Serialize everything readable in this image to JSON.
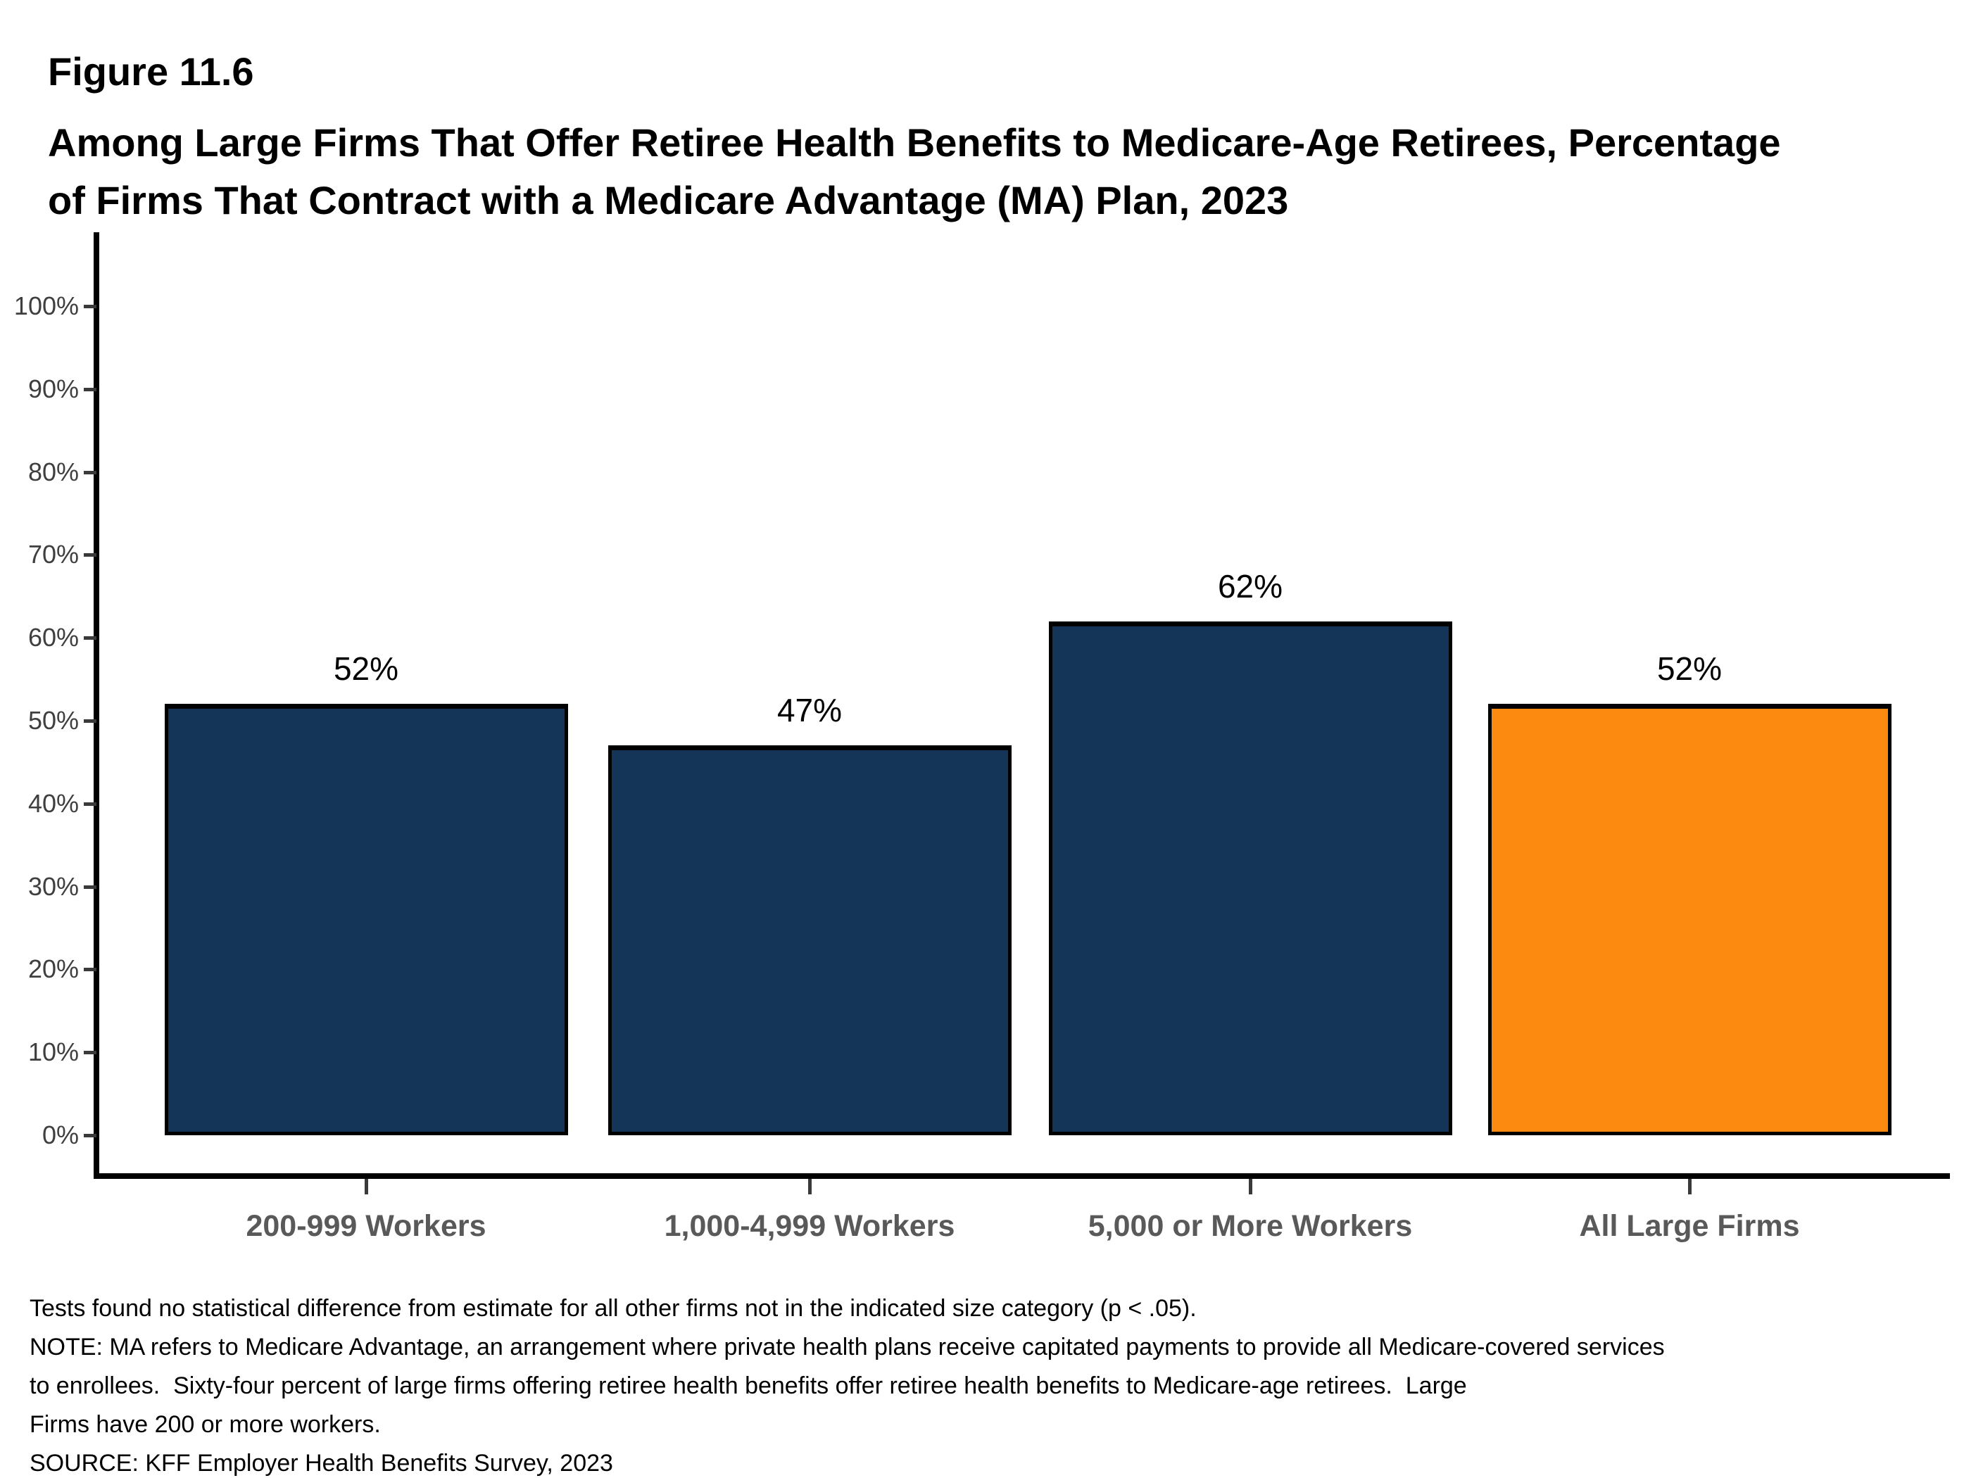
{
  "figure": {
    "number": "Figure 11.6",
    "title_line1": "Among Large Firms That Offer Retiree Health Benefits to Medicare-Age Retirees, Percentage",
    "title_line2": "of Firms That Contract with a Medicare Advantage (MA) Plan, 2023"
  },
  "chart_data": {
    "type": "bar",
    "title": "Among Large Firms That Offer Retiree Health Benefits to Medicare-Age Retirees, Percentage of Firms That Contract with a Medicare Advantage (MA) Plan, 2023",
    "categories": [
      "200-999 Workers",
      "1,000-4,999 Workers",
      "5,000 or More Workers",
      "All Large Firms"
    ],
    "values": [
      52,
      47,
      62,
      52
    ],
    "value_labels": [
      "52%",
      "47%",
      "62%",
      "52%"
    ],
    "bar_colors": [
      "#153558",
      "#153558",
      "#153558",
      "#FC8A10"
    ],
    "xlabel": "",
    "ylabel": "",
    "ylim": [
      0,
      100
    ],
    "ytick_step": 10,
    "ytick_labels": [
      "0%",
      "10%",
      "20%",
      "30%",
      "40%",
      "50%",
      "60%",
      "70%",
      "80%",
      "90%",
      "100%"
    ],
    "grid": false,
    "legend": null
  },
  "colors": {
    "bar_navy": "#153558",
    "bar_orange": "#FC8A10",
    "axis_line": "#000000",
    "ytick_label": "#3f3f3f",
    "xtick_label": "#595959"
  },
  "footnotes": {
    "lines": [
      "Tests found no statistical difference from estimate for all other firms not in the indicated size category (p < .05).",
      "NOTE: MA refers to Medicare Advantage, an arrangement where private health plans receive capitated payments to provide all Medicare-covered services",
      "to enrollees.  Sixty-four percent of large firms offering retiree health benefits offer retiree health benefits to Medicare-age retirees.  Large",
      "Firms have 200 or more workers.",
      "SOURCE: KFF Employer Health Benefits Survey, 2023"
    ]
  }
}
